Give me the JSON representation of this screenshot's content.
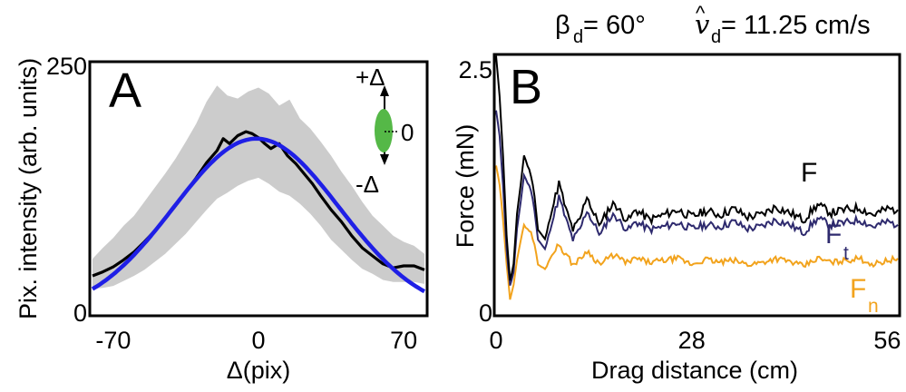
{
  "header": {
    "beta_symbol": "β",
    "beta_sub": "d",
    "beta_value": " = 60°",
    "v_symbol": "v",
    "v_hat": "^",
    "v_sub": "d",
    "v_value": " = 11.25 cm/s"
  },
  "colors": {
    "fit": "#1f1fe6",
    "band": "#cccccc",
    "F": "#000000",
    "Ft": "#2e2a6e",
    "Fn": "#f2a31d",
    "ellipse": "#55b847"
  },
  "chart_data": [
    {
      "type": "line",
      "panel_label": "A",
      "xlabel": "Δ(pix)",
      "ylabel": "Pix. intensity (arb. units)",
      "xlim": [
        -80,
        80
      ],
      "ylim": [
        0,
        250
      ],
      "xticks": [
        -70,
        0,
        70
      ],
      "xtick_labels": [
        "-70",
        "0",
        "70"
      ],
      "yticks": [
        0,
        250
      ],
      "ytick_labels": [
        "0",
        "250"
      ],
      "series": [
        {
          "name": "measured intensity",
          "x": [
            -80,
            -75,
            -70,
            -65,
            -60,
            -55,
            -50,
            -45,
            -40,
            -35,
            -30,
            -25,
            -20,
            -17,
            -14,
            -10,
            -6,
            -3,
            0,
            3,
            6,
            10,
            14,
            18,
            22,
            26,
            30,
            35,
            40,
            45,
            50,
            55,
            60,
            65,
            70,
            75,
            80
          ],
          "values": [
            38,
            42,
            47,
            54,
            62,
            72,
            83,
            95,
            108,
            122,
            136,
            151,
            163,
            175,
            170,
            178,
            182,
            180,
            176,
            170,
            165,
            170,
            158,
            150,
            140,
            130,
            118,
            104,
            92,
            78,
            66,
            58,
            50,
            46,
            48,
            48,
            44
          ]
        },
        {
          "name": "gaussian fit",
          "mu": -1,
          "sigma": 40,
          "amplitude": 175,
          "x_range": [
            -80,
            80
          ]
        },
        {
          "name": "std band",
          "x": [
            -80,
            -75,
            -70,
            -65,
            -60,
            -55,
            -50,
            -45,
            -40,
            -35,
            -30,
            -25,
            -20,
            -15,
            -10,
            -5,
            0,
            5,
            10,
            15,
            20,
            25,
            30,
            35,
            40,
            45,
            50,
            55,
            60,
            65,
            70,
            75,
            80
          ],
          "upper": [
            55,
            66,
            76,
            88,
            98,
            112,
            126,
            140,
            155,
            172,
            190,
            212,
            228,
            218,
            215,
            222,
            226,
            220,
            208,
            214,
            195,
            185,
            172,
            158,
            142,
            128,
            112,
            98,
            88,
            78,
            72,
            68,
            60
          ],
          "lower": [
            25,
            26,
            28,
            33,
            38,
            44,
            52,
            60,
            70,
            80,
            92,
            104,
            115,
            121,
            128,
            133,
            136,
            130,
            122,
            118,
            110,
            100,
            88,
            74,
            64,
            54,
            45,
            40,
            34,
            32,
            32,
            32,
            30
          ]
        }
      ],
      "inset": {
        "top_label": "+Δ",
        "bottom_label": "-Δ",
        "zero_label": "0"
      }
    },
    {
      "type": "line",
      "panel_label": "B",
      "xlabel": "Drag distance (cm)",
      "ylabel": "Force (mN)",
      "xlim": [
        0,
        57.5
      ],
      "ylim": [
        0,
        2.6
      ],
      "xticks": [
        0,
        28,
        56
      ],
      "xtick_labels": [
        "0",
        "28",
        "56"
      ],
      "yticks": [
        0,
        2.5
      ],
      "ytick_labels": [
        "0",
        "2.5"
      ],
      "series": [
        {
          "name": "F",
          "label": "F",
          "x": [
            0,
            0.5,
            1,
            1.5,
            2,
            2.5,
            3,
            4,
            5,
            5.5,
            6,
            7,
            8,
            9,
            10,
            11,
            12,
            13,
            14,
            15,
            16,
            17,
            18,
            19,
            20,
            22,
            24,
            26,
            28,
            30,
            32,
            34,
            36,
            38,
            40,
            42,
            44,
            46,
            48,
            50,
            52,
            54,
            56,
            57.5
          ],
          "values": [
            2.6,
            2.2,
            1.6,
            0.8,
            0.33,
            0.5,
            1.0,
            1.6,
            1.4,
            1.2,
            0.85,
            0.75,
            1.05,
            1.32,
            1.05,
            0.85,
            0.95,
            1.2,
            1.0,
            0.9,
            1.05,
            1.12,
            1.0,
            0.95,
            1.05,
            0.95,
            1.0,
            1.05,
            0.98,
            1.04,
            1.0,
            1.06,
            0.98,
            1.0,
            1.08,
            1.02,
            0.95,
            1.1,
            1.02,
            1.05,
            1.07,
            1.0,
            1.06,
            1.05
          ]
        },
        {
          "name": "Ft",
          "label": "F",
          "label_sub": "t",
          "x": [
            0,
            0.5,
            1,
            1.5,
            2,
            2.5,
            3,
            4,
            5,
            5.5,
            6,
            7,
            8,
            9,
            10,
            11,
            12,
            13,
            14,
            15,
            16,
            17,
            18,
            19,
            20,
            22,
            24,
            26,
            28,
            30,
            32,
            34,
            36,
            38,
            40,
            42,
            44,
            46,
            48,
            50,
            52,
            54,
            56,
            57.5
          ],
          "values": [
            2.05,
            1.8,
            1.3,
            0.65,
            0.28,
            0.42,
            0.85,
            1.4,
            1.25,
            1.05,
            0.75,
            0.65,
            0.92,
            1.18,
            0.95,
            0.75,
            0.85,
            1.05,
            0.9,
            0.8,
            0.95,
            1.0,
            0.9,
            0.85,
            0.93,
            0.85,
            0.88,
            0.92,
            0.86,
            0.9,
            0.88,
            0.93,
            0.86,
            0.88,
            0.95,
            0.9,
            0.82,
            0.96,
            0.9,
            0.92,
            0.95,
            0.88,
            0.93,
            0.9
          ]
        },
        {
          "name": "Fn",
          "label": "F",
          "label_sub": "n",
          "x": [
            0,
            0.5,
            1,
            1.5,
            2,
            2.5,
            3,
            4,
            5,
            5.5,
            6,
            7,
            8,
            9,
            10,
            11,
            12,
            13,
            14,
            15,
            16,
            17,
            18,
            19,
            20,
            22,
            24,
            26,
            28,
            30,
            32,
            34,
            36,
            38,
            40,
            42,
            44,
            46,
            48,
            50,
            52,
            54,
            56,
            57.5
          ],
          "values": [
            1.5,
            1.3,
            0.95,
            0.5,
            0.15,
            0.3,
            0.55,
            0.9,
            0.82,
            0.7,
            0.5,
            0.45,
            0.6,
            0.7,
            0.6,
            0.5,
            0.55,
            0.64,
            0.56,
            0.5,
            0.56,
            0.6,
            0.54,
            0.52,
            0.56,
            0.52,
            0.54,
            0.56,
            0.5,
            0.55,
            0.52,
            0.54,
            0.5,
            0.52,
            0.56,
            0.53,
            0.48,
            0.56,
            0.52,
            0.54,
            0.56,
            0.5,
            0.54,
            0.56
          ]
        }
      ]
    }
  ]
}
